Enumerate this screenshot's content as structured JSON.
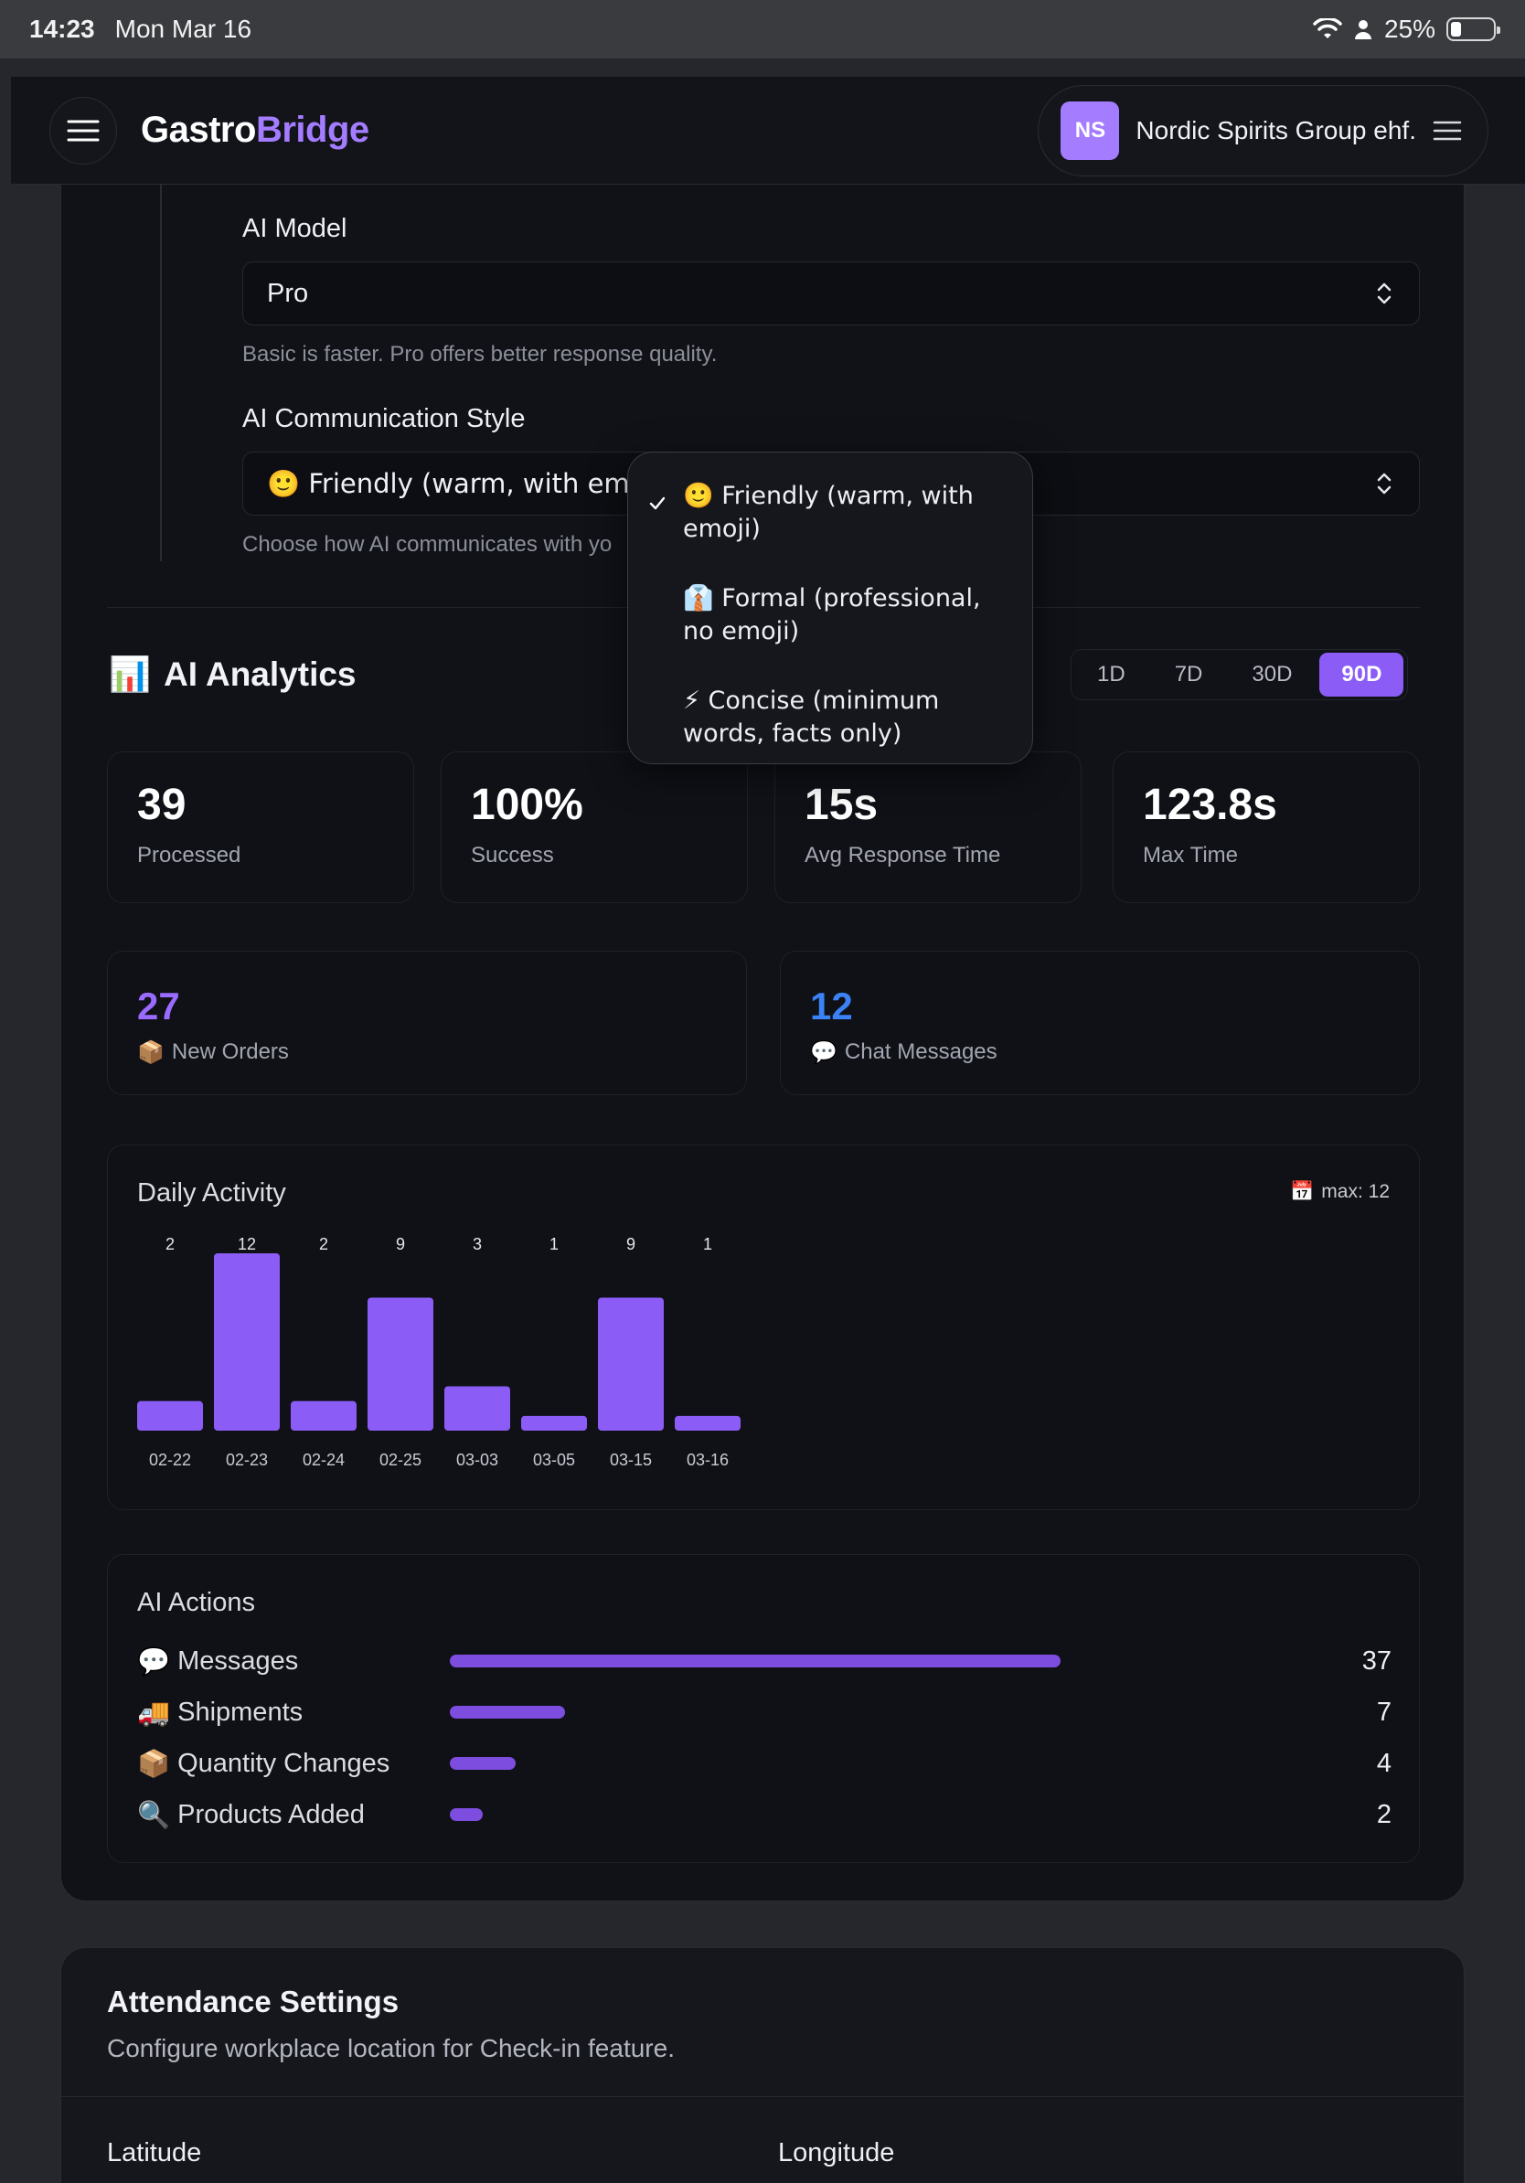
{
  "status_bar": {
    "time": "14:23",
    "date": "Mon Mar 16",
    "battery": "25%",
    "battery_fraction": 0.25
  },
  "header": {
    "logo_part1": "Gastro",
    "logo_part2": "Bridge",
    "org_initials": "NS",
    "org_name": "Nordic Spirits Group ehf."
  },
  "ai_settings": {
    "model_label": "AI Model",
    "model_value": "Pro",
    "model_help": "Basic is faster. Pro offers better response quality.",
    "style_label": "AI Communication Style",
    "style_value": "🙂 Friendly (warm, with emoji)",
    "style_help": "Choose how AI communicates with yo"
  },
  "style_dropdown": {
    "options": [
      {
        "label": "🙂 Friendly (warm, with emoji)",
        "selected": true
      },
      {
        "label": "👔 Formal (professional, no emoji)",
        "selected": false
      },
      {
        "label": "⚡ Concise (minimum words, facts only)",
        "selected": false
      }
    ]
  },
  "analytics": {
    "title": "AI Analytics",
    "title_icon": "📊",
    "ranges": [
      "1D",
      "7D",
      "30D",
      "90D"
    ],
    "active_range": "90D",
    "stats": [
      {
        "value": "39",
        "label": "Processed"
      },
      {
        "value": "100%",
        "label": "Success"
      },
      {
        "value": "15s",
        "label": "Avg Response Time"
      },
      {
        "value": "123.8s",
        "label": "Max Time"
      }
    ],
    "new_orders": {
      "value": "27",
      "icon": "📦",
      "label": "New Orders"
    },
    "chat_messages": {
      "value": "12",
      "icon": "💬",
      "label": "Chat Messages"
    },
    "colors": {
      "accent": "#8b5cf6",
      "orders": "#9b6bff",
      "chat": "#3b82f6"
    }
  },
  "chart_data": {
    "type": "bar",
    "title": "Daily Activity",
    "max_label": "max: 12",
    "max_icon": "📅",
    "categories": [
      "02-22",
      "02-23",
      "02-24",
      "02-25",
      "03-03",
      "03-05",
      "03-15",
      "03-16"
    ],
    "values": [
      2,
      12,
      2,
      9,
      3,
      1,
      9,
      1
    ],
    "ylim": [
      0,
      12
    ],
    "xlabel": "",
    "ylabel": ""
  },
  "ai_actions": {
    "title": "AI Actions",
    "max": 37,
    "items": [
      {
        "icon": "💬",
        "label": "Messages",
        "count": 37
      },
      {
        "icon": "🚚",
        "label": "Shipments",
        "count": 7
      },
      {
        "icon": "📦",
        "label": "Quantity Changes",
        "count": 4
      },
      {
        "icon": "🔍",
        "label": "Products Added",
        "count": 2
      }
    ]
  },
  "attendance": {
    "title": "Attendance Settings",
    "subtitle": "Configure workplace location for Check-in feature.",
    "latitude_label": "Latitude",
    "longitude_label": "Longitude"
  }
}
